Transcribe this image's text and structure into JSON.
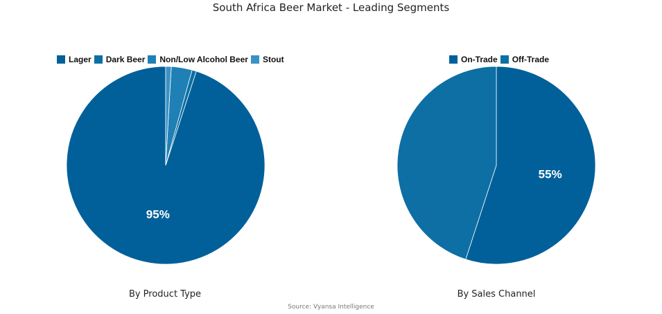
{
  "title": "South Africa Beer Market - Leading Segments",
  "source": "Source: Vyansa Intelligence",
  "chart_data": [
    {
      "type": "pie",
      "caption": "By Product Type",
      "legend_position": "top",
      "categories": [
        "Lager",
        "Dark Beer",
        "Non/Low Alcohol Beer",
        "Stout"
      ],
      "values": [
        95,
        0.7,
        3.4,
        0.9
      ],
      "colors": [
        "#01609a",
        "#0a6fa3",
        "#1f80b5",
        "#3a91c4"
      ],
      "data_labels": [
        "95%",
        "",
        "",
        ""
      ]
    },
    {
      "type": "pie",
      "caption": "By Sales Channel",
      "legend_position": "top",
      "categories": [
        "On-Trade",
        "Off-Trade"
      ],
      "values": [
        55,
        45
      ],
      "colors": [
        "#01609a",
        "#0d6fa4"
      ],
      "data_labels": [
        "55%",
        ""
      ]
    }
  ]
}
